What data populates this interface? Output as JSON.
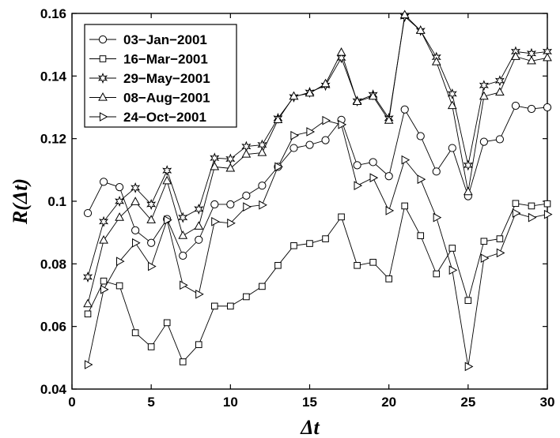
{
  "chart_data": {
    "type": "line",
    "title": "",
    "xlabel": "Δt",
    "ylabel": "R(Δt)",
    "xlim": [
      0,
      30
    ],
    "ylim": [
      0.04,
      0.16
    ],
    "x_ticks": [
      0,
      5,
      10,
      15,
      20,
      25,
      30
    ],
    "y_ticks": [
      0.04,
      0.06,
      0.08,
      0.1,
      0.12,
      0.14,
      0.16
    ],
    "x_tick_labels": [
      "0",
      "5",
      "10",
      "15",
      "20",
      "25",
      "30"
    ],
    "y_tick_labels": [
      "0.04",
      "0.06",
      "0.08",
      "0.1",
      "0.12",
      "0.14",
      "0.16"
    ],
    "grid": false,
    "legend_position": "top-left",
    "x": [
      1,
      2,
      3,
      4,
      5,
      6,
      7,
      8,
      9,
      10,
      11,
      12,
      13,
      14,
      15,
      16,
      17,
      18,
      19,
      20,
      21,
      22,
      23,
      24,
      25,
      26,
      27,
      28,
      29,
      30
    ],
    "series": [
      {
        "name": "03−Jan−2001",
        "marker": "circle",
        "values": [
          0.0962,
          0.1062,
          0.1045,
          0.0907,
          0.0867,
          0.0943,
          0.0826,
          0.0877,
          0.099,
          0.099,
          0.1018,
          0.105,
          0.111,
          0.117,
          0.118,
          0.1195,
          0.126,
          0.1115,
          0.1125,
          0.108,
          0.1293,
          0.1208,
          0.1095,
          0.117,
          0.1016,
          0.119,
          0.1198,
          0.1305,
          0.1295,
          0.13
        ]
      },
      {
        "name": "16−Mar−2001",
        "marker": "square",
        "values": [
          0.064,
          0.0745,
          0.073,
          0.058,
          0.0535,
          0.0612,
          0.0487,
          0.0542,
          0.0665,
          0.0665,
          0.0695,
          0.0728,
          0.0795,
          0.0858,
          0.0865,
          0.088,
          0.095,
          0.0795,
          0.0805,
          0.0752,
          0.0985,
          0.089,
          0.0768,
          0.085,
          0.0683,
          0.0872,
          0.088,
          0.0993,
          0.0985,
          0.0992
        ]
      },
      {
        "name": "29−May−2001",
        "marker": "star",
        "values": [
          0.0758,
          0.0935,
          0.1,
          0.1043,
          0.099,
          0.1098,
          0.0948,
          0.0975,
          0.1138,
          0.1135,
          0.1175,
          0.118,
          0.1265,
          0.1333,
          0.1348,
          0.137,
          0.1458,
          0.132,
          0.134,
          0.1265,
          0.159,
          0.1545,
          0.146,
          0.1343,
          0.1115,
          0.137,
          0.1385,
          0.1478,
          0.1472,
          0.1478
        ]
      },
      {
        "name": "08−Aug−2001",
        "marker": "triangle-up",
        "values": [
          0.0672,
          0.0875,
          0.0948,
          0.0998,
          0.094,
          0.1065,
          0.089,
          0.092,
          0.111,
          0.1105,
          0.115,
          0.1155,
          0.126,
          0.1335,
          0.1345,
          0.1375,
          0.1475,
          0.1318,
          0.1335,
          0.1258,
          0.1595,
          0.1545,
          0.1445,
          0.1305,
          0.103,
          0.1335,
          0.1348,
          0.1462,
          0.1448,
          0.1458
        ]
      },
      {
        "name": "24−Oct−2001",
        "marker": "triangle-right",
        "values": [
          0.0478,
          0.0718,
          0.0808,
          0.0867,
          0.0792,
          0.094,
          0.0732,
          0.0703,
          0.0935,
          0.093,
          0.0982,
          0.0988,
          0.111,
          0.121,
          0.1222,
          0.1258,
          0.1245,
          0.105,
          0.1075,
          0.097,
          0.1132,
          0.107,
          0.0948,
          0.078,
          0.0472,
          0.0818,
          0.0835,
          0.0962,
          0.0948,
          0.0958
        ]
      }
    ]
  }
}
